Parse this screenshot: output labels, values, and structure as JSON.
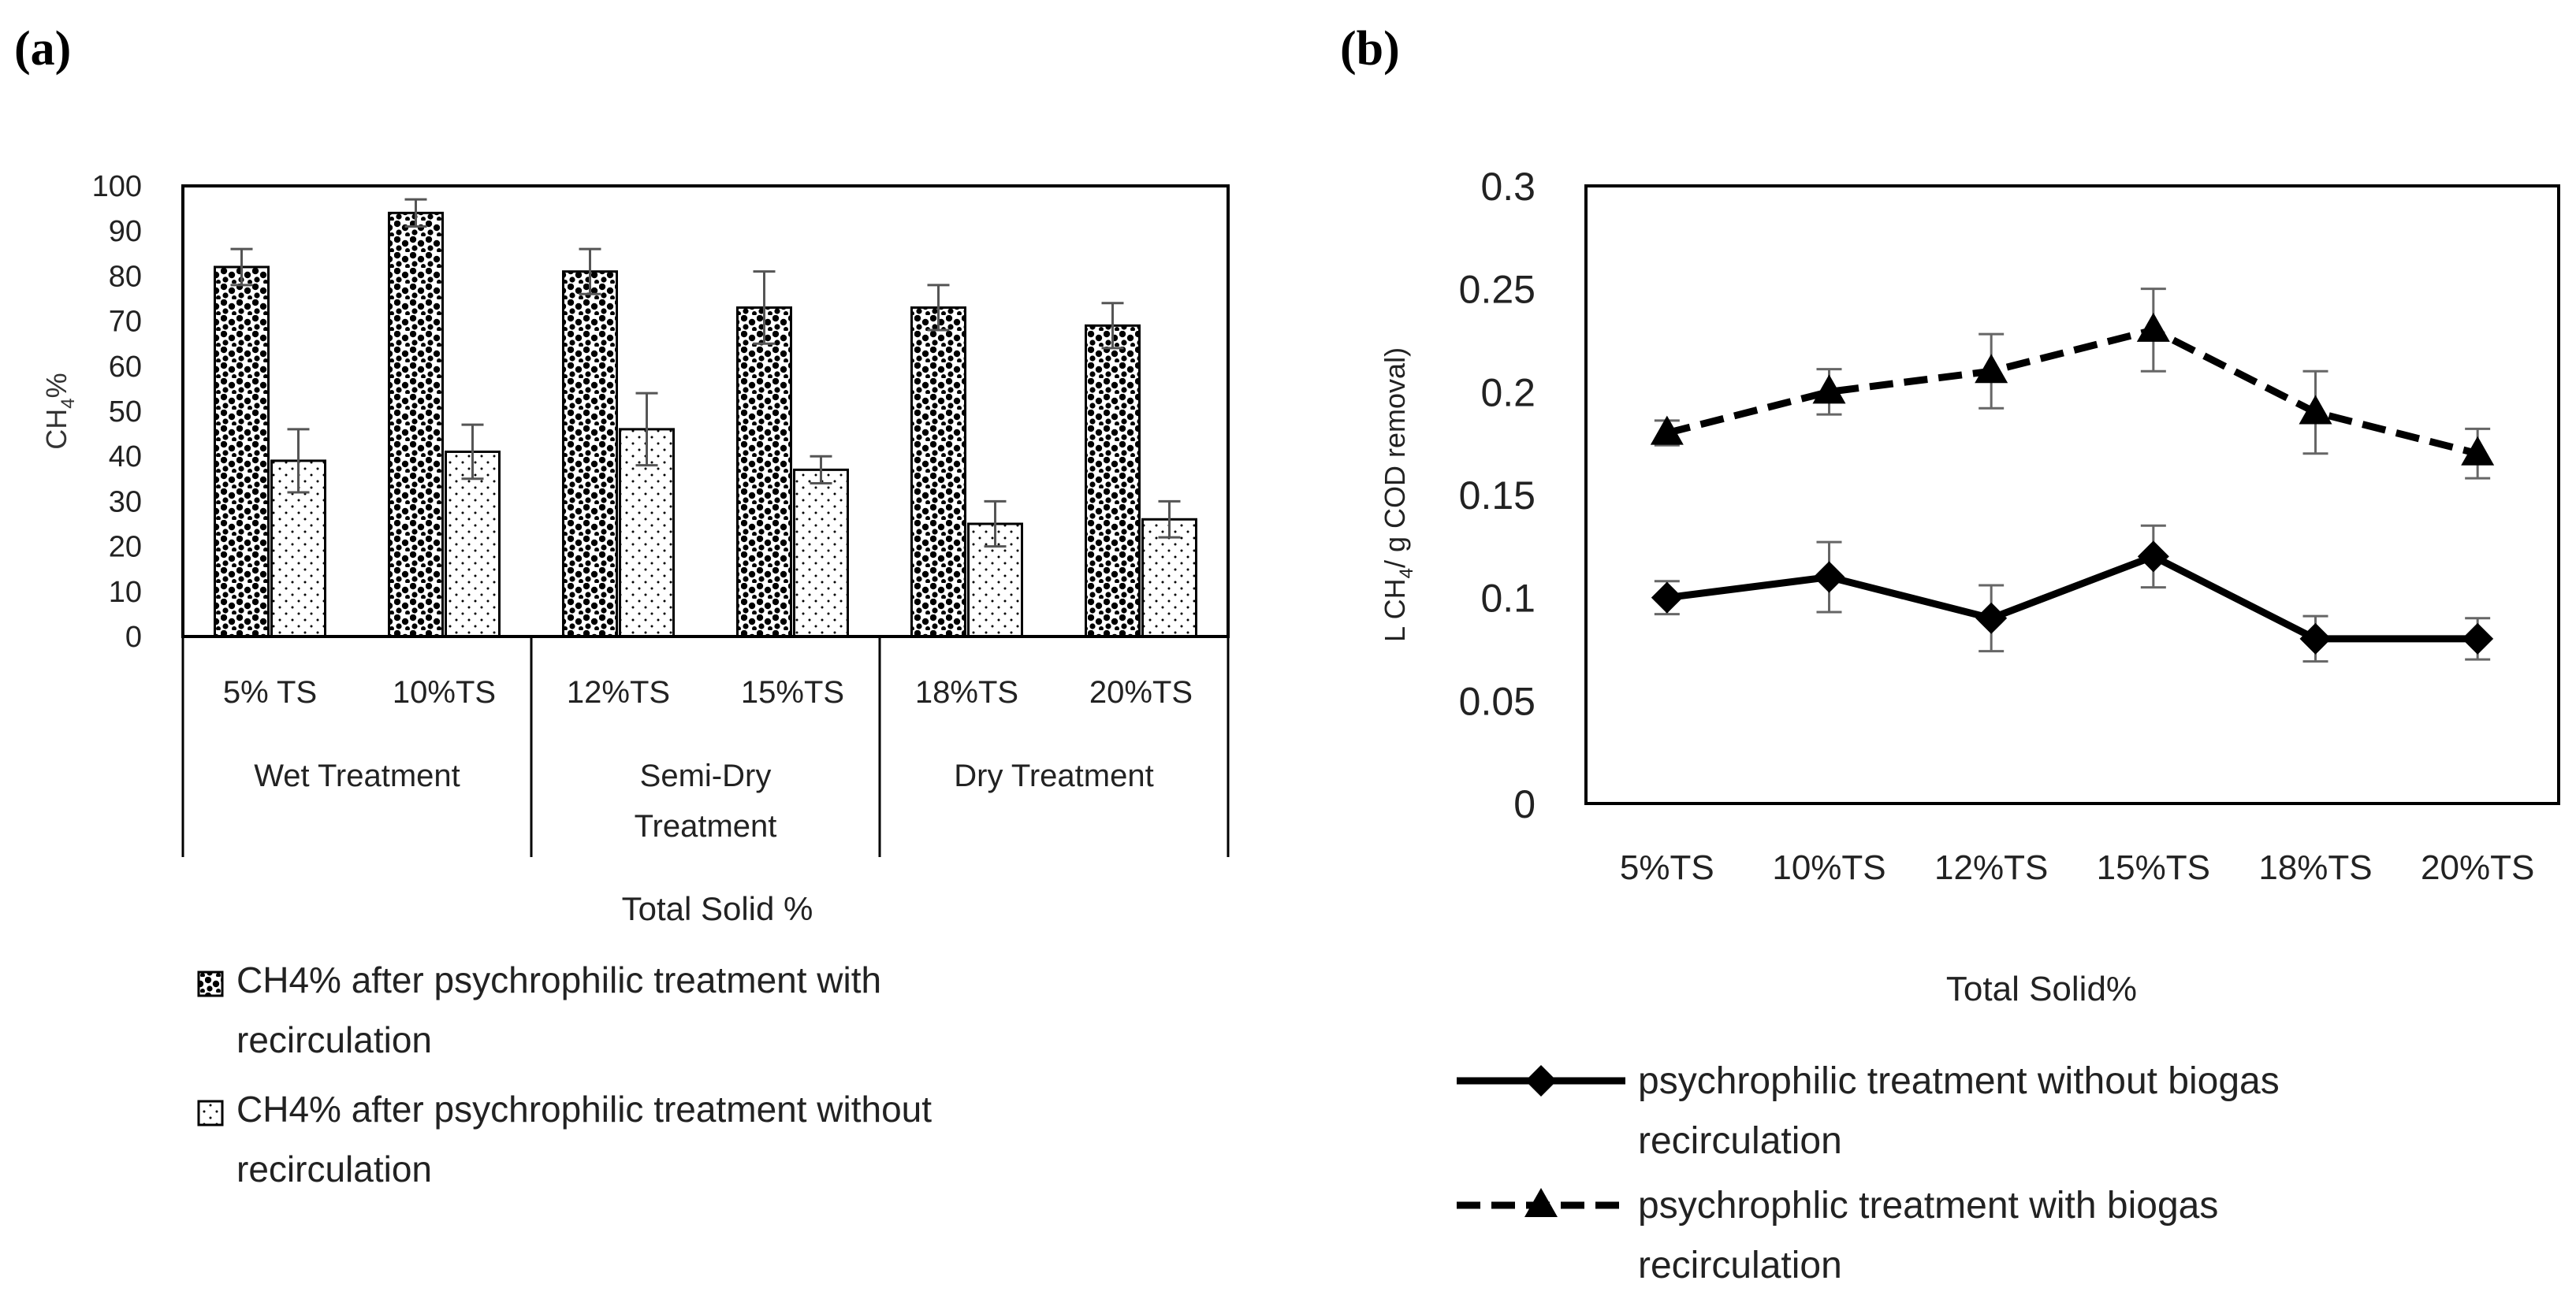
{
  "panels": {
    "a_label": "(a)",
    "b_label": "(b)"
  },
  "chart_data": [
    {
      "type": "bar",
      "title": "",
      "panel": "(a)",
      "ylabel": "CH4%",
      "ylabel_main": "CH",
      "ylabel_sub": "4",
      "ylabel_tail": "%",
      "xlabel": "Total Solid %",
      "ylim": [
        0,
        100
      ],
      "yticks": [
        0,
        10,
        20,
        30,
        40,
        50,
        60,
        70,
        80,
        90,
        100
      ],
      "grid": false,
      "categories": [
        "5% TS",
        "10%TS",
        "12%TS",
        "15%TS",
        "18%TS",
        "20%TS"
      ],
      "groups": [
        {
          "lines": [
            "Wet Treatment"
          ],
          "span": [
            0,
            1
          ]
        },
        {
          "lines": [
            "Semi-Dry",
            "Treatment"
          ],
          "span": [
            2,
            3
          ]
        },
        {
          "lines": [
            "Dry Treatment"
          ],
          "span": [
            4,
            5
          ]
        }
      ],
      "series": [
        {
          "name": "CH4% after psychrophilic treatment with recirculation",
          "legend_lines": [
            "CH4% after psychrophilic treatment with",
            "recirculation"
          ],
          "pattern": "dense-dots",
          "values": [
            82,
            94,
            81,
            73,
            73,
            69
          ],
          "errors": [
            4,
            3,
            5,
            8,
            5,
            5
          ]
        },
        {
          "name": "CH4% after psychrophilic treatment without recirculation",
          "legend_lines": [
            "CH4% after psychrophilic treatment without",
            "recirculation"
          ],
          "pattern": "sparse-dots",
          "values": [
            39,
            41,
            46,
            37,
            25,
            26
          ],
          "errors": [
            7,
            6,
            8,
            3,
            5,
            4
          ]
        }
      ],
      "legend_position": "bottom"
    },
    {
      "type": "line",
      "title": "",
      "panel": "(b)",
      "ylabel": "L CH4/ g COD removal)",
      "ylabel_pre": "L CH",
      "ylabel_sub": "4",
      "ylabel_post": "/ g COD removal)",
      "xlabel": "Total Solid%",
      "ylim": [
        0,
        0.3
      ],
      "yticks": [
        "0",
        "0.05",
        "0.1",
        "0.15",
        "0.2",
        "0.25",
        "0.3"
      ],
      "grid": false,
      "categories": [
        "5%TS",
        "10%TS",
        "12%TS",
        "15%TS",
        "18%TS",
        "20%TS"
      ],
      "series": [
        {
          "name": "psychrophilic treatment without biogas recirculation",
          "legend_lines": [
            "psychrophilic treatment without biogas",
            "recirculation"
          ],
          "marker": "diamond",
          "line": "solid",
          "values": [
            0.1,
            0.11,
            0.09,
            0.12,
            0.08,
            0.08
          ],
          "errors": [
            0.008,
            0.017,
            0.016,
            0.015,
            0.011,
            0.01
          ]
        },
        {
          "name": "psychrophlic treatment with biogas recirculation",
          "legend_lines": [
            "psychrophlic treatment with biogas",
            "recirculation"
          ],
          "marker": "triangle",
          "line": "dashed",
          "values": [
            0.18,
            0.2,
            0.21,
            0.23,
            0.19,
            0.17
          ],
          "errors": [
            0.006,
            0.011,
            0.018,
            0.02,
            0.02,
            0.012
          ]
        }
      ],
      "legend_position": "bottom"
    }
  ]
}
